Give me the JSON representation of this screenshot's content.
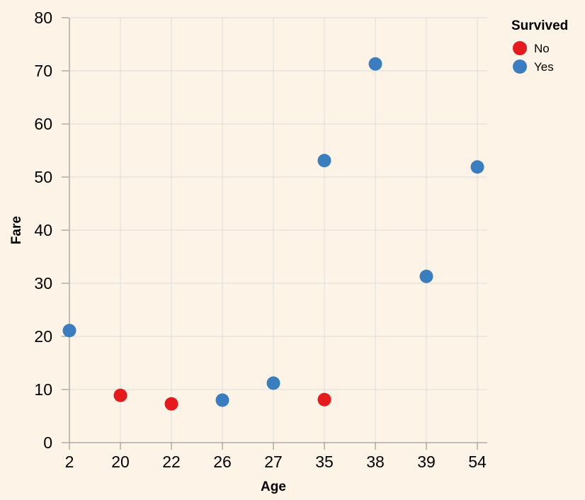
{
  "chart_data": {
    "type": "scatter",
    "xlabel": "Age",
    "ylabel": "Fare",
    "x_scale": "point",
    "categories": [
      "2",
      "20",
      "22",
      "26",
      "27",
      "35",
      "38",
      "39",
      "54"
    ],
    "ylim": [
      0,
      80
    ],
    "yticks": [
      "0",
      "10",
      "20",
      "30",
      "40",
      "50",
      "60",
      "70",
      "80"
    ],
    "grid": true,
    "legend": {
      "title": "Survived",
      "placement": "top-right",
      "entries": [
        {
          "label": "No",
          "color": "#e41a1c"
        },
        {
          "label": "Yes",
          "color": "#3a7ebf"
        }
      ]
    },
    "points": [
      {
        "x": "2",
        "y": 21.1,
        "survived": "Yes"
      },
      {
        "x": "20",
        "y": 8.9,
        "survived": "No"
      },
      {
        "x": "22",
        "y": 7.3,
        "survived": "No"
      },
      {
        "x": "26",
        "y": 8.0,
        "survived": "Yes"
      },
      {
        "x": "27",
        "y": 11.2,
        "survived": "Yes"
      },
      {
        "x": "35",
        "y": 53.1,
        "survived": "Yes"
      },
      {
        "x": "35",
        "y": 8.1,
        "survived": "No"
      },
      {
        "x": "38",
        "y": 71.3,
        "survived": "Yes"
      },
      {
        "x": "39",
        "y": 31.3,
        "survived": "Yes"
      },
      {
        "x": "54",
        "y": 51.9,
        "survived": "Yes"
      }
    ]
  }
}
